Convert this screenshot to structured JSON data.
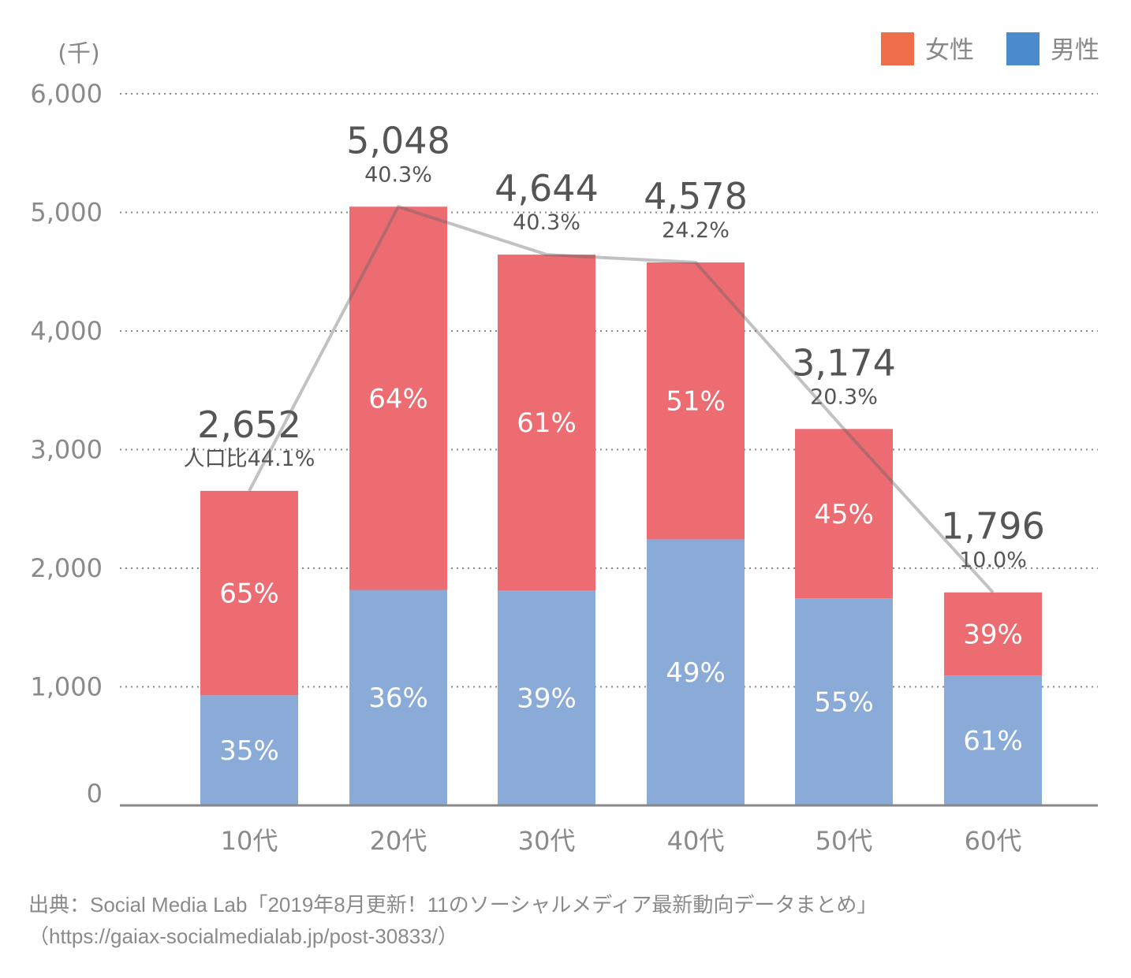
{
  "chart_data": {
    "type": "bar",
    "stacked": true,
    "unit_label": "(千)",
    "categories": [
      "10代",
      "20代",
      "30代",
      "40代",
      "50代",
      "60代"
    ],
    "totals": [
      2652,
      5048,
      4644,
      4578,
      3174,
      1796
    ],
    "total_labels": [
      "2,652",
      "5,048",
      "4,644",
      "4,578",
      "3,174",
      "1,796"
    ],
    "population_ratio_labels": [
      "人口比44.1%",
      "40.3%",
      "40.3%",
      "24.2%",
      "20.3%",
      "10.0%"
    ],
    "series": [
      {
        "name": "男性",
        "color": "#8AAAD8",
        "legend_color": "#4A8BCB",
        "share": [
          35,
          36,
          39,
          49,
          55,
          61
        ],
        "labels": [
          "35%",
          "36%",
          "39%",
          "49%",
          "55%",
          "61%"
        ]
      },
      {
        "name": "女性",
        "color": "#EC6C72",
        "legend_color": "#EE6D4A",
        "share": [
          65,
          64,
          61,
          51,
          45,
          39
        ],
        "labels": [
          "65%",
          "64%",
          "61%",
          "51%",
          "45%",
          "39%"
        ]
      }
    ],
    "line": {
      "description_values": "totals",
      "color": "#999999"
    },
    "ylim": [
      0,
      6000
    ],
    "yticks": [
      0,
      1000,
      2000,
      3000,
      4000,
      5000,
      6000
    ],
    "ytick_labels": [
      "0",
      "1,000",
      "2,000",
      "3,000",
      "4,000",
      "5,000",
      "6,000"
    ],
    "grid": true,
    "legend_order": [
      "女性",
      "男性"
    ],
    "legend_position": "top-right"
  },
  "source": {
    "line1": "出典：Social Media Lab「2019年8月更新！11のソーシャルメディア最新動向データまとめ」",
    "line2": "（https://gaiax-socialmedialab.jp/post-30833/）"
  }
}
